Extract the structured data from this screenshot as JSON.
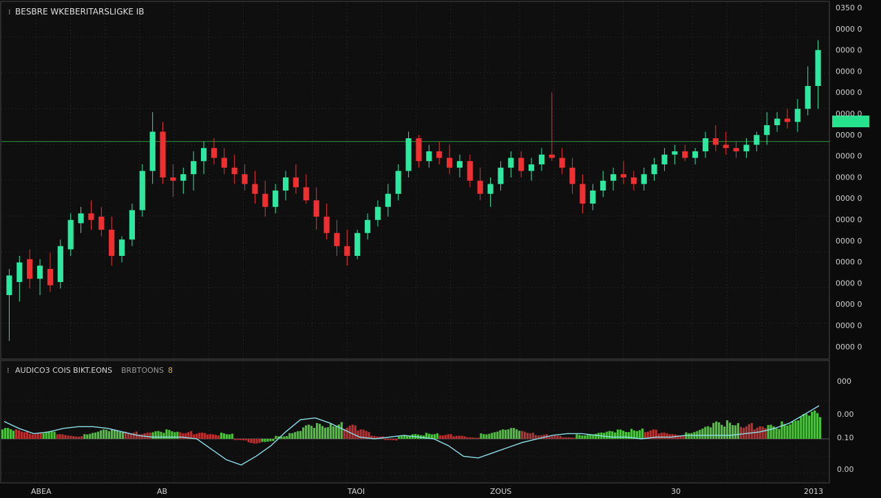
{
  "chart_data": [
    {
      "type": "candlestick",
      "title": "BESBRE WKEBERITARSLIGKE IB",
      "y_axis_labels": [
        "0350 0",
        "0000 0",
        "0000 0",
        "0000 0",
        "0000 0",
        "0000 0",
        "0000 0",
        "0000 0",
        "0000 0",
        "0000 0",
        "0000 0",
        "0000 0",
        "0000 0",
        "0000 0",
        "0000 0",
        "0000 0",
        "0000 0"
      ],
      "current_price_marker": "",
      "ylim": [
        0,
        100
      ],
      "grid": true,
      "horizontal_line": 63,
      "candles": [
        {
          "o": 16,
          "h": 24,
          "l": 2,
          "c": 22
        },
        {
          "o": 20,
          "h": 28,
          "l": 14,
          "c": 26
        },
        {
          "o": 27,
          "h": 30,
          "l": 18,
          "c": 21
        },
        {
          "o": 21,
          "h": 27,
          "l": 16,
          "c": 25
        },
        {
          "o": 24,
          "h": 29,
          "l": 17,
          "c": 19
        },
        {
          "o": 20,
          "h": 33,
          "l": 18,
          "c": 31
        },
        {
          "o": 30,
          "h": 41,
          "l": 28,
          "c": 39
        },
        {
          "o": 38,
          "h": 43,
          "l": 35,
          "c": 41
        },
        {
          "o": 41,
          "h": 45,
          "l": 36,
          "c": 39
        },
        {
          "o": 40,
          "h": 43,
          "l": 34,
          "c": 36
        },
        {
          "o": 36,
          "h": 40,
          "l": 25,
          "c": 28
        },
        {
          "o": 28,
          "h": 34,
          "l": 26,
          "c": 33
        },
        {
          "o": 33,
          "h": 44,
          "l": 31,
          "c": 42
        },
        {
          "o": 42,
          "h": 56,
          "l": 40,
          "c": 54
        },
        {
          "o": 54,
          "h": 72,
          "l": 50,
          "c": 66
        },
        {
          "o": 66,
          "h": 69,
          "l": 50,
          "c": 52
        },
        {
          "o": 52,
          "h": 56,
          "l": 46,
          "c": 51
        },
        {
          "o": 51,
          "h": 55,
          "l": 47,
          "c": 53
        },
        {
          "o": 53,
          "h": 60,
          "l": 48,
          "c": 57
        },
        {
          "o": 57,
          "h": 63,
          "l": 53,
          "c": 61
        },
        {
          "o": 61,
          "h": 64,
          "l": 56,
          "c": 58
        },
        {
          "o": 58,
          "h": 61,
          "l": 53,
          "c": 55
        },
        {
          "o": 55,
          "h": 59,
          "l": 50,
          "c": 53
        },
        {
          "o": 53,
          "h": 56,
          "l": 48,
          "c": 50
        },
        {
          "o": 50,
          "h": 54,
          "l": 44,
          "c": 47
        },
        {
          "o": 47,
          "h": 51,
          "l": 40,
          "c": 43
        },
        {
          "o": 43,
          "h": 50,
          "l": 41,
          "c": 48
        },
        {
          "o": 48,
          "h": 54,
          "l": 45,
          "c": 52
        },
        {
          "o": 52,
          "h": 56,
          "l": 47,
          "c": 49
        },
        {
          "o": 49,
          "h": 53,
          "l": 44,
          "c": 45
        },
        {
          "o": 45,
          "h": 49,
          "l": 36,
          "c": 40
        },
        {
          "o": 40,
          "h": 44,
          "l": 33,
          "c": 35
        },
        {
          "o": 35,
          "h": 39,
          "l": 28,
          "c": 31
        },
        {
          "o": 31,
          "h": 36,
          "l": 25,
          "c": 28
        },
        {
          "o": 28,
          "h": 36,
          "l": 27,
          "c": 35
        },
        {
          "o": 35,
          "h": 41,
          "l": 33,
          "c": 39
        },
        {
          "o": 39,
          "h": 45,
          "l": 37,
          "c": 43
        },
        {
          "o": 43,
          "h": 50,
          "l": 40,
          "c": 47
        },
        {
          "o": 47,
          "h": 56,
          "l": 45,
          "c": 54
        },
        {
          "o": 54,
          "h": 66,
          "l": 52,
          "c": 64
        },
        {
          "o": 64,
          "h": 65,
          "l": 55,
          "c": 57
        },
        {
          "o": 57,
          "h": 62,
          "l": 55,
          "c": 60
        },
        {
          "o": 60,
          "h": 63,
          "l": 56,
          "c": 58
        },
        {
          "o": 58,
          "h": 62,
          "l": 53,
          "c": 55
        },
        {
          "o": 55,
          "h": 59,
          "l": 52,
          "c": 57
        },
        {
          "o": 57,
          "h": 59,
          "l": 49,
          "c": 51
        },
        {
          "o": 51,
          "h": 55,
          "l": 45,
          "c": 47
        },
        {
          "o": 47,
          "h": 52,
          "l": 43,
          "c": 50
        },
        {
          "o": 50,
          "h": 57,
          "l": 48,
          "c": 55
        },
        {
          "o": 55,
          "h": 60,
          "l": 52,
          "c": 58
        },
        {
          "o": 58,
          "h": 60,
          "l": 52,
          "c": 54
        },
        {
          "o": 54,
          "h": 58,
          "l": 51,
          "c": 56
        },
        {
          "o": 56,
          "h": 61,
          "l": 54,
          "c": 59
        },
        {
          "o": 59,
          "h": 78,
          "l": 57,
          "c": 58
        },
        {
          "o": 58,
          "h": 61,
          "l": 53,
          "c": 55
        },
        {
          "o": 55,
          "h": 58,
          "l": 47,
          "c": 50
        },
        {
          "o": 50,
          "h": 53,
          "l": 41,
          "c": 44
        },
        {
          "o": 44,
          "h": 50,
          "l": 42,
          "c": 48
        },
        {
          "o": 48,
          "h": 54,
          "l": 46,
          "c": 51
        },
        {
          "o": 51,
          "h": 55,
          "l": 48,
          "c": 53
        },
        {
          "o": 53,
          "h": 57,
          "l": 50,
          "c": 52
        },
        {
          "o": 52,
          "h": 54,
          "l": 48,
          "c": 50
        },
        {
          "o": 50,
          "h": 55,
          "l": 48,
          "c": 53
        },
        {
          "o": 53,
          "h": 58,
          "l": 51,
          "c": 56
        },
        {
          "o": 56,
          "h": 61,
          "l": 54,
          "c": 59
        },
        {
          "o": 59,
          "h": 62,
          "l": 56,
          "c": 60
        },
        {
          "o": 60,
          "h": 62,
          "l": 57,
          "c": 58
        },
        {
          "o": 58,
          "h": 61,
          "l": 56,
          "c": 60
        },
        {
          "o": 60,
          "h": 66,
          "l": 58,
          "c": 64
        },
        {
          "o": 64,
          "h": 68,
          "l": 60,
          "c": 62
        },
        {
          "o": 62,
          "h": 66,
          "l": 59,
          "c": 61
        },
        {
          "o": 61,
          "h": 63,
          "l": 58,
          "c": 60
        },
        {
          "o": 60,
          "h": 64,
          "l": 58,
          "c": 62
        },
        {
          "o": 62,
          "h": 66,
          "l": 60,
          "c": 65
        },
        {
          "o": 65,
          "h": 72,
          "l": 62,
          "c": 68
        },
        {
          "o": 68,
          "h": 72,
          "l": 66,
          "c": 70
        },
        {
          "o": 70,
          "h": 73,
          "l": 67,
          "c": 69
        },
        {
          "o": 69,
          "h": 76,
          "l": 66,
          "c": 73
        },
        {
          "o": 73,
          "h": 86,
          "l": 71,
          "c": 80
        },
        {
          "o": 80,
          "h": 94,
          "l": 73,
          "c": 91
        }
      ]
    },
    {
      "type": "bar",
      "title": "AUDICO3 COIS BIKT.EONS",
      "subtitle": "BRBTOONS",
      "badge": "8",
      "y_axis_labels": [
        "000",
        "0.00",
        "0.10",
        "0.00"
      ],
      "ylim": [
        -1,
        1
      ],
      "histogram": [
        0.35,
        0.3,
        0.2,
        0.25,
        0.15,
        0.1,
        0.2,
        0.3,
        0.3,
        0.25,
        0.2,
        0.25,
        0.3,
        0.25,
        0.2,
        0.15,
        0.2,
        -0.05,
        -0.15,
        -0.1,
        0.1,
        0.25,
        0.45,
        0.5,
        0.55,
        0.45,
        0.3,
        0.1,
        -0.05,
        0.1,
        0.15,
        0.2,
        0.15,
        0.1,
        0.05,
        0.2,
        0.3,
        0.35,
        0.25,
        0.15,
        0.1,
        0.05,
        0.15,
        0.2,
        0.25,
        0.3,
        0.35,
        0.3,
        0.2,
        0.15,
        0.25,
        0.4,
        0.55,
        0.6,
        0.5,
        0.4,
        0.45,
        0.6,
        0.8,
        0.9
      ],
      "signal_line": [
        0.5,
        0.3,
        0.15,
        0.2,
        0.3,
        0.35,
        0.35,
        0.3,
        0.2,
        0.1,
        0.05,
        0.05,
        0.05,
        0.0,
        -0.3,
        -0.6,
        -0.75,
        -0.5,
        -0.2,
        0.2,
        0.55,
        0.6,
        0.45,
        0.25,
        0.05,
        0.0,
        0.05,
        0.1,
        0.05,
        0.0,
        -0.2,
        -0.5,
        -0.55,
        -0.4,
        -0.25,
        -0.1,
        0.0,
        0.1,
        0.15,
        0.15,
        0.1,
        0.05,
        0.05,
        0.0,
        0.05,
        0.05,
        0.1,
        0.1,
        0.1,
        0.1,
        0.15,
        0.2,
        0.3,
        0.45,
        0.7,
        0.95
      ]
    }
  ],
  "x_axis_labels": [
    "ABEA",
    "AB",
    "TAOI",
    "ZOUS",
    "30",
    "2013"
  ]
}
